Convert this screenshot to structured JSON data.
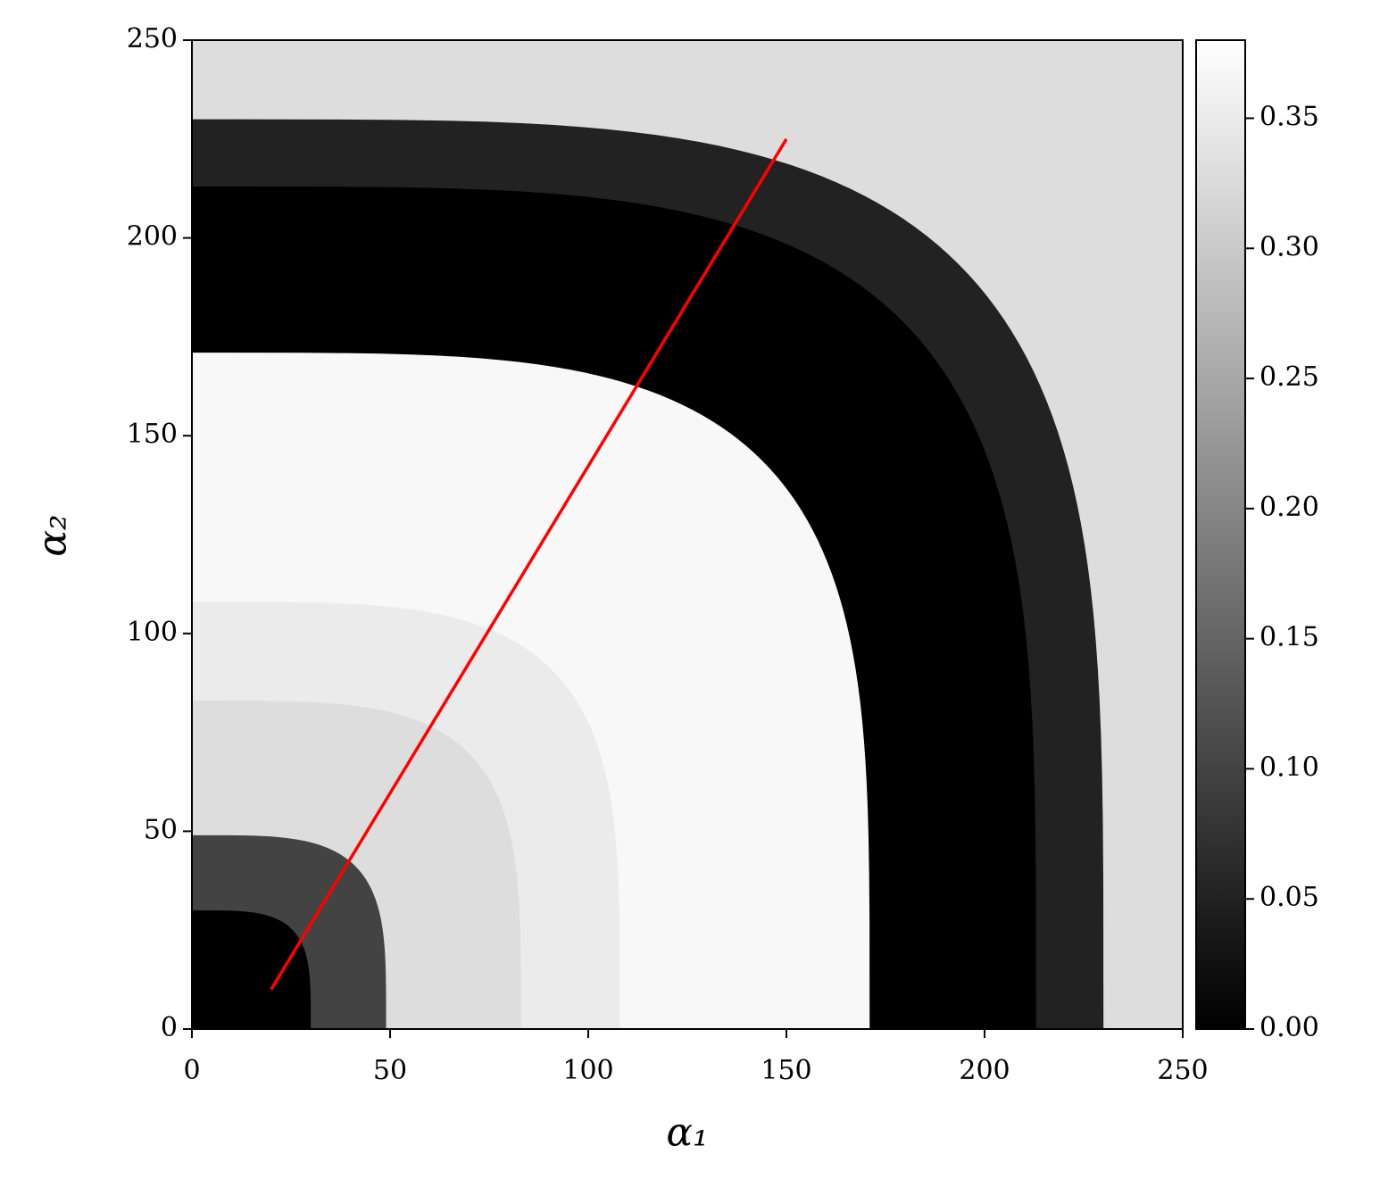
{
  "chart_data": {
    "type": "heatmap",
    "xlabel": "α₁",
    "ylabel": "α₂",
    "xlim": [
      0,
      250
    ],
    "ylim": [
      0,
      250
    ],
    "xticks": [
      0,
      50,
      100,
      150,
      200,
      250
    ],
    "yticks": [
      0,
      50,
      100,
      150,
      200,
      250
    ],
    "regions": [
      {
        "r_max": 30,
        "value": 0
      },
      {
        "r_max": 49,
        "value": 0.1
      },
      {
        "r_max": 83,
        "value": 0.33
      },
      {
        "r_max": 108,
        "value": 0.35
      },
      {
        "r_max": 171,
        "value": 0.37
      },
      {
        "r_max": 213,
        "value": 0
      },
      {
        "r_max": 230,
        "value": 0.05
      }
    ],
    "outer_value": 0.33,
    "line": {
      "x": [
        20,
        150
      ],
      "y": [
        10,
        225
      ],
      "color": "#ff0000"
    },
    "colorbar": {
      "clim": [
        0,
        0.38
      ],
      "ticks": [
        {
          "value": 0,
          "label": "0.00"
        },
        {
          "value": 0.05,
          "label": "0.05"
        },
        {
          "value": 0.1,
          "label": "0.10"
        },
        {
          "value": 0.15,
          "label": "0.15"
        },
        {
          "value": 0.2,
          "label": "0.20"
        },
        {
          "value": 0.25,
          "label": "0.25"
        },
        {
          "value": 0.3,
          "label": "0.30"
        },
        {
          "value": 0.35,
          "label": "0.35"
        }
      ]
    }
  }
}
